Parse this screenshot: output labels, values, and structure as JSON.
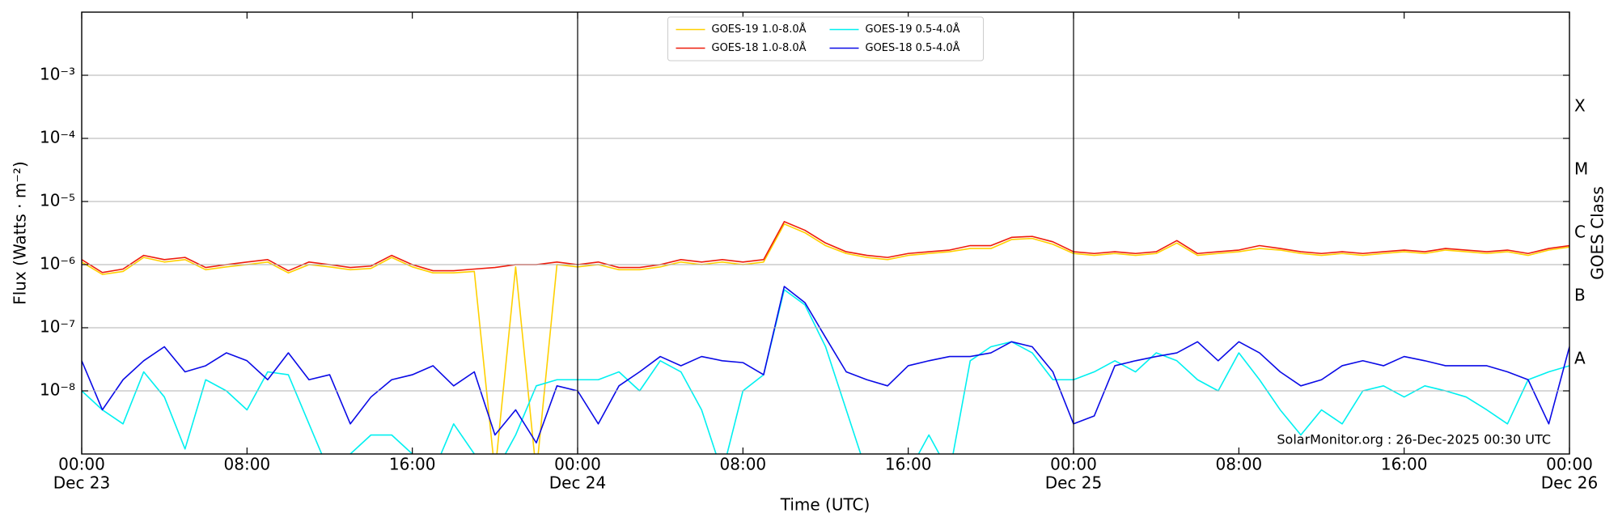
{
  "chart_data": {
    "type": "line",
    "xlabel": "Time (UTC)",
    "ylabel": "Flux (Watts · m⁻²)",
    "y2label": "GOES Class",
    "annotation": "SolarMonitor.org : 26-Dec-2025 00:30 UTC",
    "log_y": true,
    "grid": true,
    "legend": "upper center",
    "x": [
      0,
      1,
      2,
      3,
      4,
      5,
      6,
      7,
      8,
      9,
      10,
      11,
      12,
      13,
      14,
      15,
      16,
      17,
      18,
      19,
      20,
      21,
      22,
      23,
      24,
      25,
      26,
      27,
      28,
      29,
      30,
      31,
      32,
      33,
      34,
      35,
      36,
      37,
      38,
      39,
      40,
      41,
      42,
      43,
      44,
      45,
      46,
      47,
      48,
      49,
      50,
      51,
      52,
      53,
      54,
      55,
      56,
      57,
      58,
      59,
      60,
      61,
      62,
      63,
      64,
      65,
      66,
      67,
      68,
      69,
      70,
      71,
      72
    ],
    "xlim": [
      0,
      72
    ],
    "xticks": [
      {
        "value": 0,
        "label": "00:00",
        "date": "Dec 23"
      },
      {
        "value": 8,
        "label": "08:00"
      },
      {
        "value": 16,
        "label": "16:00"
      },
      {
        "value": 24,
        "label": "00:00",
        "date": "Dec 24"
      },
      {
        "value": 32,
        "label": "08:00"
      },
      {
        "value": 40,
        "label": "16:00"
      },
      {
        "value": 48,
        "label": "00:00",
        "date": "Dec 25"
      },
      {
        "value": 56,
        "label": "08:00"
      },
      {
        "value": 64,
        "label": "16:00"
      },
      {
        "value": 72,
        "label": "00:00",
        "date": "Dec 26"
      }
    ],
    "vlines": [
      24,
      48
    ],
    "ylim": [
      1e-09,
      0.01
    ],
    "yticks": [
      {
        "value": 1e-08,
        "label": "10⁻⁸"
      },
      {
        "value": 1e-07,
        "label": "10⁻⁷"
      },
      {
        "value": 1e-06,
        "label": "10⁻⁶"
      },
      {
        "value": 1e-05,
        "label": "10⁻⁵"
      },
      {
        "value": 0.0001,
        "label": "10⁻⁴"
      },
      {
        "value": 0.001,
        "label": "10⁻³"
      }
    ],
    "class_ticks": [
      {
        "value": 3.16e-08,
        "label": "A"
      },
      {
        "value": 3.16e-07,
        "label": "B"
      },
      {
        "value": 3.16e-06,
        "label": "C"
      },
      {
        "value": 3.16e-05,
        "label": "M"
      },
      {
        "value": 0.000316,
        "label": "X"
      }
    ],
    "series": [
      {
        "name": "GOES-19 1.0-8.0Å",
        "color": "#ffd000",
        "values": [
          1.1e-06,
          7e-07,
          7.8e-07,
          1.3e-06,
          1.1e-06,
          1.2e-06,
          8.3e-07,
          9.2e-07,
          1e-06,
          1.1e-06,
          7.4e-07,
          1e-06,
          9.2e-07,
          8.3e-07,
          8.7e-07,
          1.3e-06,
          9.2e-07,
          7.4e-07,
          7.4e-07,
          7.8e-07,
          5e-10,
          9.2e-07,
          5e-10,
          1e-06,
          9.2e-07,
          1e-06,
          8.3e-07,
          8.3e-07,
          9.2e-07,
          1.1e-06,
          1e-06,
          1.1e-06,
          1e-06,
          1.1e-06,
          4.4e-06,
          3.2e-06,
          2e-06,
          1.5e-06,
          1.3e-06,
          1.2e-06,
          1.4e-06,
          1.5e-06,
          1.6e-06,
          1.8e-06,
          1.8e-06,
          2.5e-06,
          2.6e-06,
          2.1e-06,
          1.5e-06,
          1.4e-06,
          1.5e-06,
          1.4e-06,
          1.5e-06,
          2.2e-06,
          1.4e-06,
          1.5e-06,
          1.6e-06,
          1.8e-06,
          1.7e-06,
          1.5e-06,
          1.4e-06,
          1.5e-06,
          1.4e-06,
          1.5e-06,
          1.6e-06,
          1.5e-06,
          1.7e-06,
          1.6e-06,
          1.5e-06,
          1.6e-06,
          1.4e-06,
          1.7e-06,
          1.9e-06
        ]
      },
      {
        "name": "GOES-18 1.0-8.0Å",
        "color": "#ee1c0c",
        "values": [
          1.2e-06,
          7.5e-07,
          8.5e-07,
          1.4e-06,
          1.2e-06,
          1.3e-06,
          9e-07,
          1e-06,
          1.1e-06,
          1.2e-06,
          8e-07,
          1.1e-06,
          1e-06,
          9e-07,
          9.5e-07,
          1.4e-06,
          1e-06,
          8e-07,
          8e-07,
          8.5e-07,
          9e-07,
          1e-06,
          1e-06,
          1.1e-06,
          1e-06,
          1.1e-06,
          9e-07,
          9e-07,
          1e-06,
          1.2e-06,
          1.1e-06,
          1.2e-06,
          1.1e-06,
          1.2e-06,
          4.8e-06,
          3.5e-06,
          2.2e-06,
          1.6e-06,
          1.4e-06,
          1.3e-06,
          1.5e-06,
          1.6e-06,
          1.7e-06,
          2e-06,
          2e-06,
          2.7e-06,
          2.8e-06,
          2.3e-06,
          1.6e-06,
          1.5e-06,
          1.6e-06,
          1.5e-06,
          1.6e-06,
          2.4e-06,
          1.5e-06,
          1.6e-06,
          1.7e-06,
          2e-06,
          1.8e-06,
          1.6e-06,
          1.5e-06,
          1.6e-06,
          1.5e-06,
          1.6e-06,
          1.7e-06,
          1.6e-06,
          1.8e-06,
          1.7e-06,
          1.6e-06,
          1.7e-06,
          1.5e-06,
          1.8e-06,
          2e-06
        ]
      },
      {
        "name": "GOES-19 0.5-4.0Å",
        "color": "#00f0f0",
        "values": [
          1e-08,
          5e-09,
          3e-09,
          2e-08,
          8e-09,
          1.2e-09,
          1.5e-08,
          1e-08,
          5e-09,
          2e-08,
          1.8e-08,
          3e-09,
          5e-10,
          1e-09,
          2e-09,
          2e-09,
          1e-09,
          5e-10,
          3e-09,
          1e-09,
          5e-10,
          2e-09,
          1.2e-08,
          1.5e-08,
          1.5e-08,
          1.5e-08,
          2e-08,
          1e-08,
          3e-08,
          2e-08,
          5e-09,
          5e-10,
          1e-08,
          1.8e-08,
          4e-07,
          2.3e-07,
          5e-08,
          5e-09,
          5e-10,
          5e-10,
          5e-10,
          2e-09,
          5e-10,
          3e-08,
          5e-08,
          6e-08,
          4e-08,
          1.5e-08,
          1.5e-08,
          2e-08,
          3e-08,
          2e-08,
          4e-08,
          3e-08,
          1.5e-08,
          1e-08,
          4e-08,
          1.5e-08,
          5e-09,
          2e-09,
          5e-09,
          3e-09,
          1e-08,
          1.2e-08,
          8e-09,
          1.2e-08,
          1e-08,
          8e-09,
          5e-09,
          3e-09,
          1.5e-08,
          2e-08,
          2.5e-08
        ]
      },
      {
        "name": "GOES-18 0.5-4.0Å",
        "color": "#0a0ae6",
        "values": [
          3e-08,
          5e-09,
          1.5e-08,
          3e-08,
          5e-08,
          2e-08,
          2.5e-08,
          4e-08,
          3e-08,
          1.5e-08,
          4e-08,
          1.5e-08,
          1.8e-08,
          3e-09,
          8e-09,
          1.5e-08,
          1.8e-08,
          2.5e-08,
          1.2e-08,
          2e-08,
          2e-09,
          5e-09,
          1.5e-09,
          1.2e-08,
          1e-08,
          3e-09,
          1.2e-08,
          2e-08,
          3.5e-08,
          2.5e-08,
          3.5e-08,
          3e-08,
          2.8e-08,
          1.8e-08,
          4.5e-07,
          2.5e-07,
          7e-08,
          2e-08,
          1.5e-08,
          1.2e-08,
          2.5e-08,
          3e-08,
          3.5e-08,
          3.5e-08,
          4e-08,
          6e-08,
          5e-08,
          2e-08,
          3e-09,
          4e-09,
          2.5e-08,
          3e-08,
          3.5e-08,
          4e-08,
          6e-08,
          3e-08,
          6e-08,
          4e-08,
          2e-08,
          1.2e-08,
          1.5e-08,
          2.5e-08,
          3e-08,
          2.5e-08,
          3.5e-08,
          3e-08,
          2.5e-08,
          2.5e-08,
          2.5e-08,
          2e-08,
          1.5e-08,
          3e-09,
          5e-08
        ]
      }
    ]
  }
}
